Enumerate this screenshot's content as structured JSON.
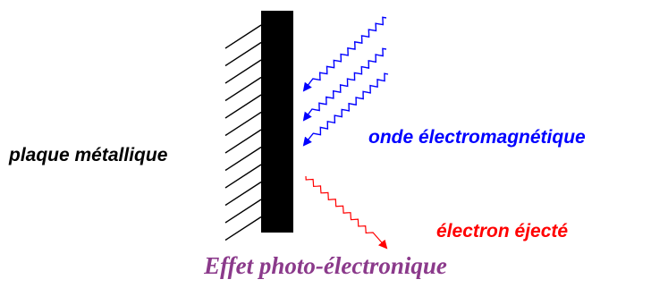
{
  "labels": {
    "plate": "plaque métallique",
    "wave": "onde électromagnétique",
    "electron": "électron éjecté",
    "title": "Effet photo-électronique"
  },
  "colors": {
    "plate": "#000000",
    "wave": "#0000ff",
    "electron": "#ff0000",
    "title": "#8b3a8b",
    "text": "#000000"
  }
}
